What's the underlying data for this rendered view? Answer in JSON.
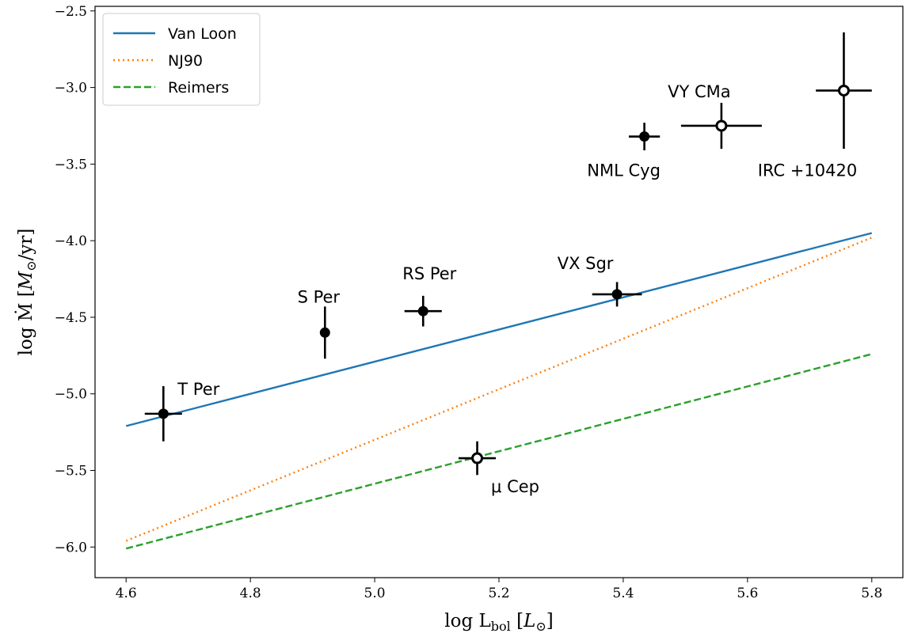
{
  "chart_data": {
    "type": "scatter",
    "xlabel": "log L_bol [L_⊙]",
    "ylabel": "log Ṁ [M_⊙/yr]",
    "xlim": [
      4.55,
      5.85
    ],
    "ylim": [
      -6.2,
      -2.47
    ],
    "xticks": [
      4.6,
      4.8,
      5.0,
      5.2,
      5.4,
      5.6,
      5.8
    ],
    "xtick_labels": [
      "4.6",
      "4.8",
      "5.0",
      "5.2",
      "5.4",
      "5.6",
      "5.8"
    ],
    "yticks": [
      -6.0,
      -5.5,
      -5.0,
      -4.5,
      -4.0,
      -3.5,
      -3.0,
      -2.5
    ],
    "ytick_labels": [
      "−6.0",
      "−5.5",
      "−5.0",
      "−4.5",
      "−4.0",
      "−3.5",
      "−3.0",
      "−2.5"
    ],
    "grid": false,
    "legend_position": "top-left",
    "series": [
      {
        "name": "Van Loon",
        "style": "solid",
        "color": "#1f77b4",
        "x": [
          4.6,
          5.8
        ],
        "y": [
          -5.21,
          -3.95
        ]
      },
      {
        "name": "NJ90",
        "style": "dotted",
        "color": "#ff7f0e",
        "x": [
          4.6,
          5.8
        ],
        "y": [
          -5.96,
          -3.98
        ]
      },
      {
        "name": "Reimers",
        "style": "dashed",
        "color": "#2ca02c",
        "x": [
          4.6,
          5.8
        ],
        "y": [
          -6.01,
          -4.74
        ]
      }
    ],
    "points": [
      {
        "label": "T Per",
        "x": 4.66,
        "y": -5.13,
        "xerr": 0.03,
        "yerr": 0.18,
        "filled": true
      },
      {
        "label": "S Per",
        "x": 4.92,
        "y": -4.6,
        "xerr": 0.006,
        "yerr": 0.17,
        "filled": true
      },
      {
        "label": "RS Per",
        "x": 5.078,
        "y": -4.46,
        "xerr": 0.03,
        "yerr": 0.1,
        "filled": true
      },
      {
        "label": "VX Sgr",
        "x": 5.39,
        "y": -4.35,
        "xerr": 0.04,
        "yerr": 0.08,
        "filled": true
      },
      {
        "label": "NML Cyg",
        "x": 5.434,
        "y": -3.32,
        "xerr": 0.025,
        "yerr": 0.09,
        "filled": true
      },
      {
        "label": "VY CMa",
        "x": 5.558,
        "y": -3.25,
        "xerr": 0.065,
        "yerr": 0.15,
        "filled": false
      },
      {
        "label": "IRC +10420",
        "x": 5.755,
        "y": -3.02,
        "xerr": 0.045,
        "yerr": 0.38,
        "filled": false
      },
      {
        "label": "μ Cep",
        "x": 5.165,
        "y": -5.42,
        "xerr": 0.03,
        "yerr": 0.11,
        "filled": false
      }
    ]
  }
}
